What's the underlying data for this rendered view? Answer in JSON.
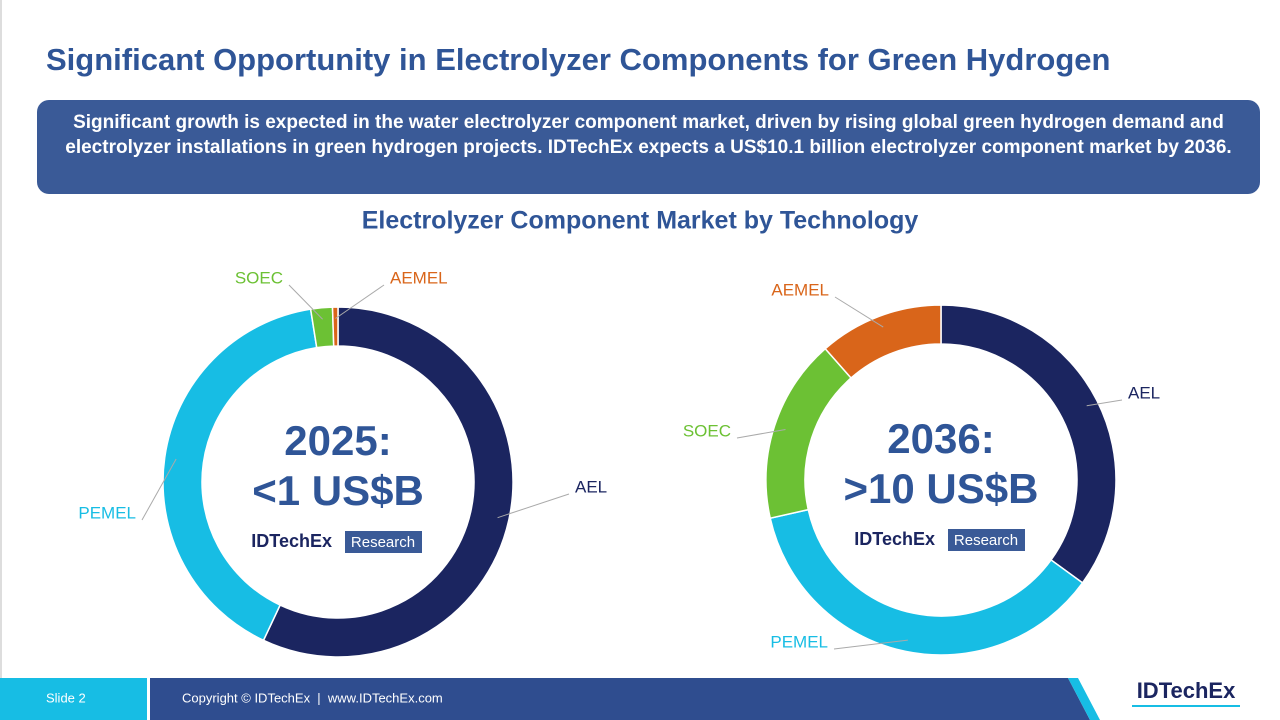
{
  "header": {
    "title": "Significant Opportunity in Electrolyzer Components for Green Hydrogen",
    "summary": "Significant growth is expected in the water electrolyzer component market, driven by rising global green hydrogen demand and electrolyzer installations in green hydrogen projects. IDTechEx expects a US$10.1 billion electrolyzer component market by 2036.",
    "subtitle": "Electrolyzer Component Market by Technology"
  },
  "chart_data": [
    {
      "type": "donut",
      "center_text": [
        "2025:",
        "<1 US$B"
      ],
      "brand": [
        "IDTechEx",
        "Research"
      ],
      "categories": [
        "AEL",
        "PEMEL",
        "SOEC",
        "AEMEL"
      ],
      "values": [
        57,
        40.5,
        2,
        0.5
      ],
      "colors": [
        "#1b2560",
        "#17bde4",
        "#6cc134",
        "#d9651a"
      ]
    },
    {
      "type": "donut",
      "center_text": [
        "2036:",
        ">10 US$B"
      ],
      "brand": [
        "IDTechEx",
        "Research"
      ],
      "categories": [
        "AEL",
        "PEMEL",
        "SOEC",
        "AEMEL"
      ],
      "values": [
        35,
        36.5,
        17,
        11.5
      ],
      "colors": [
        "#1b2560",
        "#17bde4",
        "#6cc134",
        "#d9651a"
      ]
    }
  ],
  "footer": {
    "slide": "Slide 2",
    "copyright": "Copyright © IDTechEx  |  www.IDTechEx.com",
    "logo": "IDTechEx"
  }
}
